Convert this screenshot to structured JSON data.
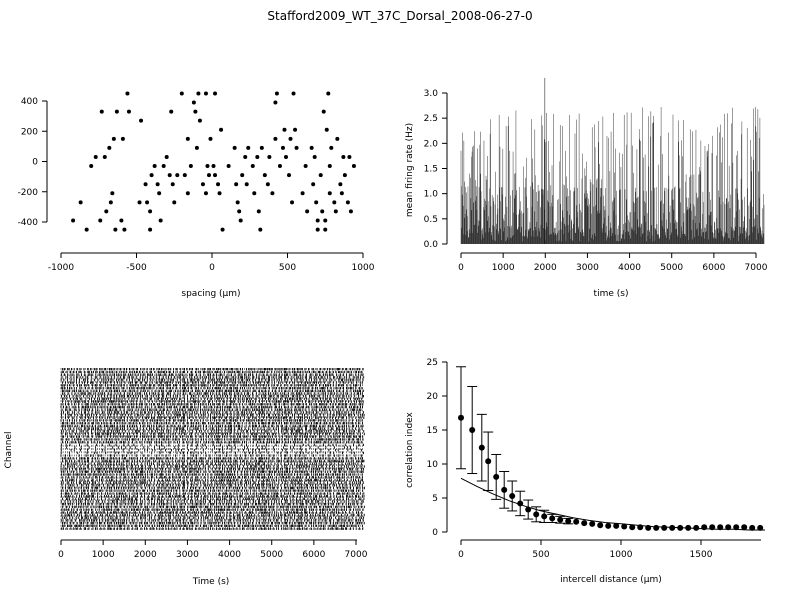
{
  "title": "Stafford2009_WT_37C_Dorsal_2008-06-27-0",
  "chart_data": [
    {
      "type": "scatter",
      "xlabel": "spacing (µm)",
      "ylabel": "",
      "xlim": [
        -1000,
        1000
      ],
      "ylim": [
        -450,
        450
      ],
      "xticks": [
        "-1000",
        "-500",
        "0",
        "500",
        "1000"
      ],
      "yticks": [
        "-400",
        "-200",
        "0",
        "200",
        "400"
      ],
      "grid": false,
      "points": [
        [
          -920,
          -390
        ],
        [
          -870,
          -270
        ],
        [
          -830,
          -450
        ],
        [
          -800,
          -30
        ],
        [
          -770,
          30
        ],
        [
          -740,
          -390
        ],
        [
          -730,
          330
        ],
        [
          -710,
          30
        ],
        [
          -700,
          -330
        ],
        [
          -680,
          90
        ],
        [
          -670,
          -270
        ],
        [
          -660,
          -210
        ],
        [
          -650,
          150
        ],
        [
          -640,
          -450
        ],
        [
          -630,
          330
        ],
        [
          -600,
          -390
        ],
        [
          -590,
          150
        ],
        [
          -580,
          -450
        ],
        [
          -550,
          330
        ],
        [
          -560,
          450
        ],
        [
          -480,
          -270
        ],
        [
          -470,
          270
        ],
        [
          -440,
          -150
        ],
        [
          -430,
          -270
        ],
        [
          -410,
          -330
        ],
        [
          -410,
          -450
        ],
        [
          -400,
          -90
        ],
        [
          -380,
          -30
        ],
        [
          -360,
          -150
        ],
        [
          -350,
          -210
        ],
        [
          -340,
          -390
        ],
        [
          -320,
          -30
        ],
        [
          -300,
          30
        ],
        [
          -280,
          -90
        ],
        [
          -270,
          330
        ],
        [
          -260,
          -150
        ],
        [
          -250,
          -270
        ],
        [
          -230,
          -90
        ],
        [
          -200,
          450
        ],
        [
          -180,
          -90
        ],
        [
          -160,
          -210
        ],
        [
          -160,
          150
        ],
        [
          -140,
          -30
        ],
        [
          -120,
          390
        ],
        [
          -110,
          330
        ],
        [
          -100,
          90
        ],
        [
          -90,
          450
        ],
        [
          -80,
          270
        ],
        [
          -60,
          -150
        ],
        [
          -40,
          -210
        ],
        [
          -40,
          450
        ],
        [
          -30,
          -30
        ],
        [
          -20,
          -90
        ],
        [
          -10,
          150
        ],
        [
          10,
          -30
        ],
        [
          20,
          -90
        ],
        [
          20,
          450
        ],
        [
          40,
          -150
        ],
        [
          50,
          -210
        ],
        [
          60,
          210
        ],
        [
          70,
          -450
        ],
        [
          110,
          -30
        ],
        [
          150,
          90
        ],
        [
          160,
          -150
        ],
        [
          170,
          -270
        ],
        [
          180,
          -330
        ],
        [
          190,
          -390
        ],
        [
          200,
          -90
        ],
        [
          220,
          30
        ],
        [
          230,
          -150
        ],
        [
          240,
          90
        ],
        [
          270,
          -30
        ],
        [
          280,
          -210
        ],
        [
          300,
          30
        ],
        [
          310,
          -330
        ],
        [
          320,
          -450
        ],
        [
          330,
          90
        ],
        [
          350,
          -90
        ],
        [
          370,
          -150
        ],
        [
          380,
          30
        ],
        [
          400,
          -210
        ],
        [
          420,
          150
        ],
        [
          420,
          390
        ],
        [
          430,
          450
        ],
        [
          450,
          -30
        ],
        [
          470,
          90
        ],
        [
          480,
          210
        ],
        [
          490,
          30
        ],
        [
          510,
          -90
        ],
        [
          520,
          150
        ],
        [
          530,
          -270
        ],
        [
          540,
          450
        ],
        [
          550,
          210
        ],
        [
          560,
          90
        ],
        [
          600,
          -210
        ],
        [
          620,
          -30
        ],
        [
          630,
          -330
        ],
        [
          660,
          90
        ],
        [
          670,
          -150
        ],
        [
          680,
          30
        ],
        [
          690,
          -270
        ],
        [
          700,
          -390
        ],
        [
          700,
          -450
        ],
        [
          720,
          -90
        ],
        [
          730,
          -330
        ],
        [
          740,
          330
        ],
        [
          750,
          -390
        ],
        [
          750,
          -450
        ],
        [
          760,
          210
        ],
        [
          770,
          450
        ],
        [
          780,
          -30
        ],
        [
          780,
          -210
        ],
        [
          790,
          90
        ],
        [
          810,
          -270
        ],
        [
          820,
          -330
        ],
        [
          830,
          150
        ],
        [
          850,
          -150
        ],
        [
          860,
          -210
        ],
        [
          870,
          30
        ],
        [
          880,
          -90
        ],
        [
          900,
          -270
        ],
        [
          910,
          30
        ],
        [
          920,
          -330
        ],
        [
          940,
          -30
        ]
      ]
    },
    {
      "type": "bar",
      "xlabel": "time (s)",
      "ylabel": "mean firing rate (Hz)",
      "xlim": [
        0,
        7200
      ],
      "ylim": [
        0,
        3.2
      ],
      "xticks": [
        "0",
        "1000",
        "2000",
        "3000",
        "4000",
        "5000",
        "6000",
        "7000"
      ],
      "yticks": [
        "0.0",
        "0.5",
        "1.0",
        "1.5",
        "2.0",
        "2.5",
        "3.0"
      ],
      "description_of_values": "dense histogram of firing rate in 1 s bins, values mostly 0.1–2.5 Hz, peak about 3.3 Hz near 2000 s",
      "bin_width": 1,
      "peak": {
        "x": 1990,
        "y": 3.3
      }
    },
    {
      "type": "raster",
      "xlabel": "Time (s)",
      "ylabel": "Channel",
      "xlim": [
        0,
        7200
      ],
      "xticks": [
        "0",
        "1000",
        "2000",
        "3000",
        "4000",
        "5000",
        "6000",
        "7000"
      ],
      "channels": 60
    },
    {
      "type": "scatter",
      "xlabel": "intercell distance (µm)",
      "ylabel": "correlation index",
      "xlim": [
        0,
        1900
      ],
      "ylim": [
        0,
        25
      ],
      "xticks": [
        "0",
        "500",
        "1000",
        "1500"
      ],
      "yticks": [
        "0",
        "5",
        "10",
        "15",
        "20",
        "25"
      ],
      "series": [
        {
          "style": "points-with-errorbars",
          "x": [
            0,
            70,
            130,
            170,
            220,
            270,
            320,
            370,
            420,
            470,
            520,
            570,
            620,
            670,
            720,
            770,
            820,
            870,
            920,
            970,
            1020,
            1070,
            1120,
            1170,
            1220,
            1270,
            1320,
            1370,
            1420,
            1470,
            1520,
            1570,
            1620,
            1670,
            1720,
            1770,
            1820,
            1870
          ],
          "y": [
            16.8,
            15.0,
            12.4,
            10.4,
            8.1,
            6.2,
            5.3,
            4.2,
            3.3,
            2.6,
            2.3,
            2.0,
            1.8,
            1.6,
            1.5,
            1.3,
            1.2,
            1.0,
            0.9,
            0.9,
            0.8,
            0.7,
            0.7,
            0.6,
            0.6,
            0.6,
            0.6,
            0.6,
            0.6,
            0.6,
            0.7,
            0.7,
            0.7,
            0.7,
            0.7,
            0.7,
            0.6,
            0.6
          ],
          "err": [
            7.5,
            6.4,
            4.9,
            4.3,
            3.3,
            2.7,
            2.2,
            1.8,
            1.4,
            1.1,
            0.9,
            0.6,
            0.5,
            0.4,
            0.3,
            0.3,
            0.3,
            0.2,
            0.2,
            0.2,
            0.2,
            0.2,
            0.2,
            0.2,
            0.2,
            0.2,
            0.2,
            0.2,
            0.2,
            0.2,
            0.2,
            0.2,
            0.2,
            0.2,
            0.2,
            0.2,
            0.2,
            0.2
          ]
        },
        {
          "style": "line",
          "x": [
            0,
            100,
            200,
            300,
            400,
            500,
            600,
            700,
            800,
            900,
            1000,
            1100,
            1200,
            1300,
            1400,
            1500,
            1600,
            1700,
            1800,
            1900
          ],
          "y": [
            7.9,
            6.7,
            5.6,
            4.6,
            3.8,
            3.1,
            2.6,
            2.1,
            1.7,
            1.4,
            1.2,
            1.0,
            0.8,
            0.7,
            0.6,
            0.5,
            0.4,
            0.4,
            0.3,
            0.3
          ]
        }
      ]
    }
  ]
}
